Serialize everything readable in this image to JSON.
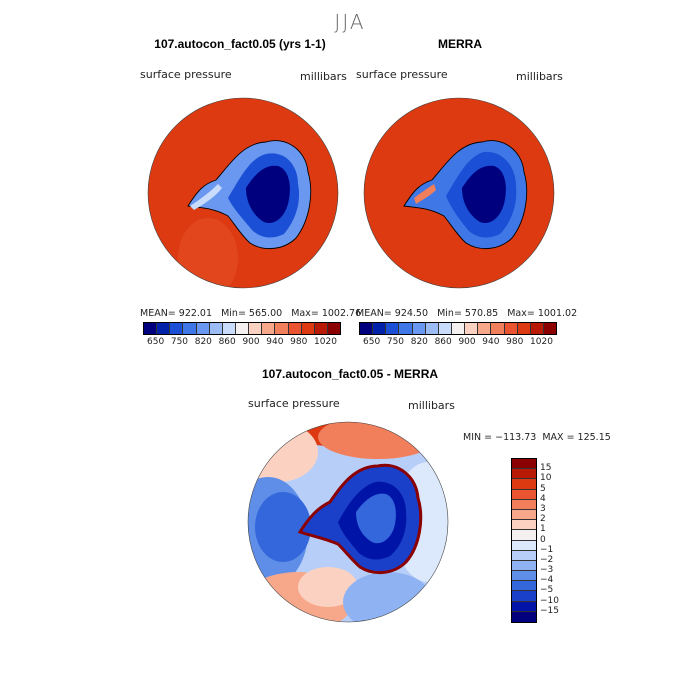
{
  "season": "JJA",
  "panel1": {
    "title": "107.autocon_fact0.05 (yrs 1-1)",
    "var_label": "surface pressure",
    "units": "millibars",
    "stats": "MEAN= 922.01   Min= 565.00   Max= 1002.76"
  },
  "panel2": {
    "title": "MERRA",
    "var_label": "surface pressure",
    "units": "millibars",
    "stats": "MEAN= 924.50   Min= 570.85   Max= 1001.02"
  },
  "panel3": {
    "title": "107.autocon_fact0.05 - MERRA",
    "var_label": "surface pressure",
    "units": "millibars",
    "stats": "MIN = −113.73  MAX = 125.15"
  },
  "colorbar_top": {
    "colors": [
      "#00007f",
      "#0022aa",
      "#1a4fd6",
      "#3f77e6",
      "#6a97ef",
      "#9bbcf5",
      "#c9dcfb",
      "#f5f0f0",
      "#fbd2c2",
      "#f7a88a",
      "#f27f5c",
      "#eb5430",
      "#dd3a11",
      "#b81a05",
      "#8b0000"
    ],
    "tick_labels": [
      "650",
      "750",
      "820",
      "860",
      "900",
      "940",
      "980",
      "1020"
    ]
  },
  "colorbar_diff": {
    "colors": [
      "#8b0000",
      "#b81a05",
      "#dd3a11",
      "#eb5430",
      "#f27f5c",
      "#f7a88a",
      "#fbd2c2",
      "#f5f0f0",
      "#dce8fb",
      "#b7cff8",
      "#8fb2f2",
      "#5f8ee9",
      "#3466dc",
      "#1a3fc9",
      "#0015a8",
      "#00007f"
    ],
    "tick_labels": [
      "15",
      "10",
      "5",
      "4",
      "3",
      "2",
      "1",
      "0",
      "−1",
      "−2",
      "−3",
      "−4",
      "−5",
      "−10",
      "−15"
    ]
  }
}
